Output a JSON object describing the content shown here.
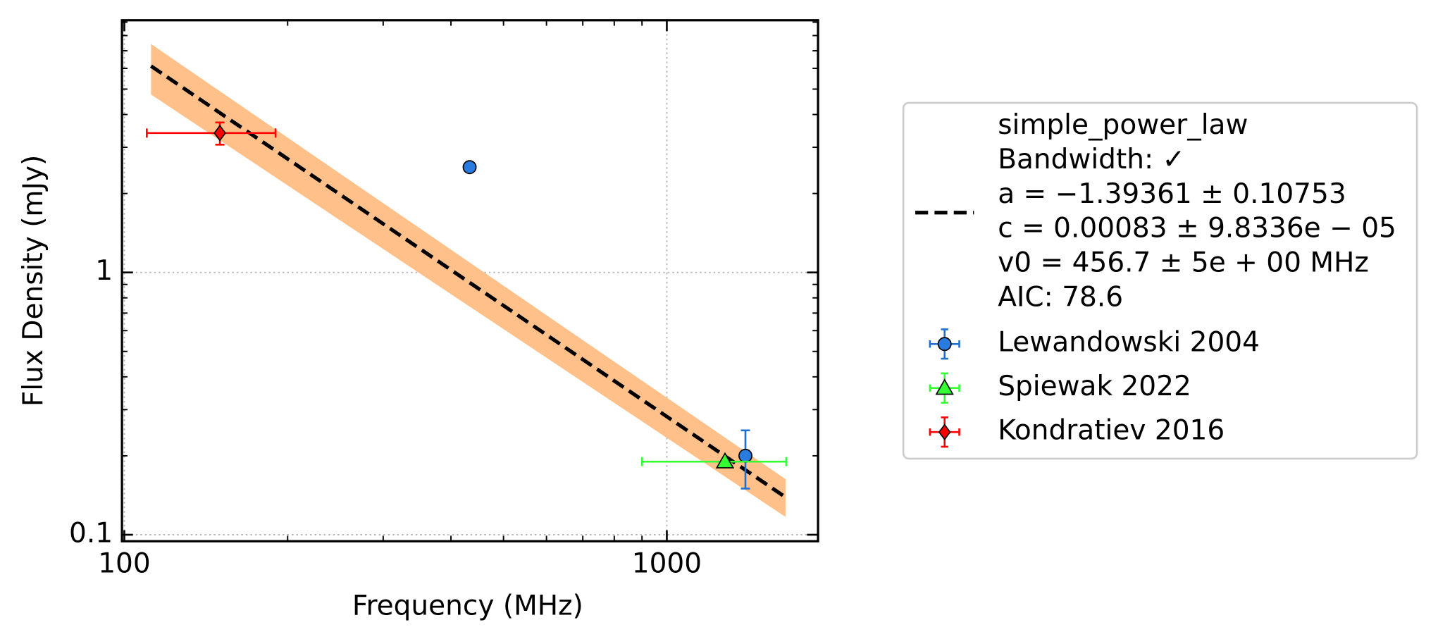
{
  "chart_data": {
    "type": "scatter",
    "xlabel": "Frequency (MHz)",
    "ylabel": "Flux Density (mJy)",
    "xscale": "log",
    "yscale": "log",
    "xlim": [
      99,
      1900
    ],
    "ylim": [
      0.0945,
      9.15
    ],
    "xticks": [
      100,
      1000
    ],
    "yticks": [
      0.1,
      1
    ],
    "xminorticks": [
      200,
      300,
      400,
      500,
      600,
      700,
      800,
      900
    ],
    "yminorticks": [
      0.2,
      0.3,
      0.4,
      0.5,
      0.6,
      0.7,
      0.8,
      0.9,
      2,
      3,
      4,
      5,
      6,
      7,
      8,
      9
    ],
    "grid": true,
    "legend": "outside-right",
    "fit": {
      "label_lines": [
        "simple_power_law",
        "Bandwidth: ✓",
        "a = −1.39361 ± 0.10753",
        "c = 0.00083 ± 9.8336e − 05",
        "v0 = 456.7 ± 5e + 00 MHz",
        "AIC: 78.6"
      ],
      "color": "#000000",
      "band_color": "#ffc08a",
      "x": [
        112,
        1655
      ],
      "y": [
        6.12,
        0.139
      ],
      "upper": [
        7.43,
        0.163
      ],
      "lower": [
        4.77,
        0.117
      ]
    },
    "series": [
      {
        "name": "Lewandowski 2004",
        "color": "#1f6fd0",
        "fill": "#2a7be0",
        "marker": "circle",
        "x": [
          433,
          1396
        ],
        "y": [
          2.52,
          0.2
        ],
        "xerr": [
          null,
          null
        ],
        "yerr": [
          null,
          0.05
        ]
      },
      {
        "name": "Spiewak 2022",
        "color": "#33ff33",
        "fill": "#33ff33",
        "marker": "triangle",
        "x": [
          1280
        ],
        "y": [
          0.19
        ],
        "xerr": [
          380
        ],
        "yerr": [
          null
        ]
      },
      {
        "name": "Kondratiev 2016",
        "color": "#ff0000",
        "fill": "#ff0000",
        "marker": "diamond",
        "x": [
          150
        ],
        "y": [
          3.4
        ],
        "xerr": [
          40
        ],
        "yerr": [
          0.33
        ]
      }
    ]
  }
}
